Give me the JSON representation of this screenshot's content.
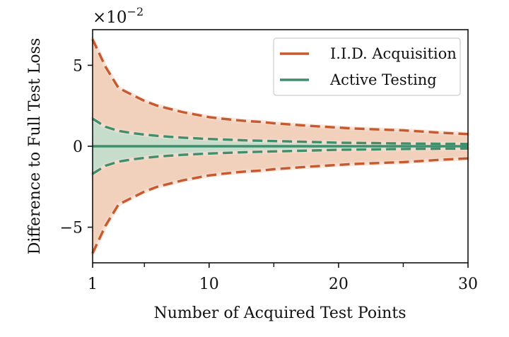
{
  "chart_data": {
    "type": "area",
    "xlabel": "Number of Acquired Test Points",
    "ylabel": "Difference to Full Test Loss",
    "y_scale_label": "×10",
    "y_scale_exponent": "−2",
    "xlim": [
      1,
      30
    ],
    "ylim": [
      -7.2,
      7.2
    ],
    "x_ticks": [
      1,
      10,
      20,
      30
    ],
    "x_minor_ticks": [
      5,
      15,
      25
    ],
    "y_ticks": [
      -5,
      0,
      5
    ],
    "y_tick_labels": [
      "−5",
      "0",
      "5"
    ],
    "legend_position": "top-right",
    "grid": false,
    "x": [
      1,
      2,
      3,
      4,
      5,
      6,
      7,
      8,
      9,
      10,
      11,
      12,
      13,
      14,
      15,
      16,
      17,
      18,
      19,
      20,
      21,
      22,
      23,
      24,
      25,
      26,
      27,
      28,
      29,
      30
    ],
    "series": [
      {
        "name": "I.I.D. Acquisition",
        "color": "#c65a2e",
        "fill": "#efc9b0",
        "upper": [
          6.6,
          4.9,
          3.6,
          3.2,
          2.8,
          2.5,
          2.3,
          2.1,
          1.95,
          1.8,
          1.7,
          1.62,
          1.55,
          1.5,
          1.42,
          1.36,
          1.3,
          1.25,
          1.2,
          1.15,
          1.1,
          1.07,
          1.04,
          1.01,
          0.98,
          0.93,
          0.88,
          0.83,
          0.79,
          0.75
        ],
        "lower": [
          -6.6,
          -4.9,
          -3.6,
          -3.2,
          -2.8,
          -2.5,
          -2.3,
          -2.1,
          -1.95,
          -1.8,
          -1.7,
          -1.62,
          -1.55,
          -1.5,
          -1.42,
          -1.36,
          -1.3,
          -1.25,
          -1.2,
          -1.15,
          -1.1,
          -1.07,
          -1.04,
          -1.01,
          -0.98,
          -0.93,
          -0.88,
          -0.83,
          -0.79,
          -0.75
        ]
      },
      {
        "name": "Active Testing",
        "color": "#3f8f6d",
        "fill": "#bde0cf",
        "mean": [
          0,
          0,
          0,
          0,
          0,
          0,
          0,
          0,
          0,
          0,
          0,
          0,
          0,
          0,
          0,
          0,
          0,
          0,
          0,
          0,
          0,
          0,
          0,
          0,
          0,
          0,
          0,
          0,
          0,
          0
        ],
        "upper": [
          1.7,
          1.2,
          0.95,
          0.82,
          0.72,
          0.64,
          0.58,
          0.53,
          0.49,
          0.45,
          0.42,
          0.39,
          0.36,
          0.34,
          0.32,
          0.3,
          0.28,
          0.26,
          0.24,
          0.22,
          0.21,
          0.2,
          0.19,
          0.18,
          0.17,
          0.16,
          0.16,
          0.15,
          0.15,
          0.14
        ],
        "lower": [
          -1.7,
          -1.2,
          -0.95,
          -0.82,
          -0.72,
          -0.64,
          -0.58,
          -0.53,
          -0.49,
          -0.45,
          -0.42,
          -0.39,
          -0.36,
          -0.34,
          -0.32,
          -0.3,
          -0.28,
          -0.26,
          -0.24,
          -0.22,
          -0.21,
          -0.2,
          -0.19,
          -0.18,
          -0.17,
          -0.16,
          -0.16,
          -0.15,
          -0.15,
          -0.14
        ]
      }
    ]
  }
}
